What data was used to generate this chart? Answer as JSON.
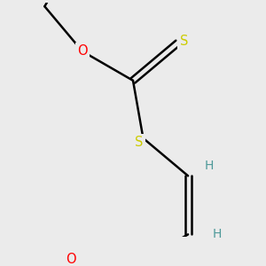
{
  "bg_color": "#ebebeb",
  "bond_color": "#000000",
  "O_color": "#ff0000",
  "S_color": "#cccc00",
  "H_color": "#4d9999",
  "line_width": 1.8,
  "font_size": 10.5,
  "figsize": [
    3.0,
    3.0
  ],
  "dpi": 100,
  "xlim": [
    -2.5,
    2.5
  ],
  "ylim": [
    -3.2,
    2.8
  ]
}
